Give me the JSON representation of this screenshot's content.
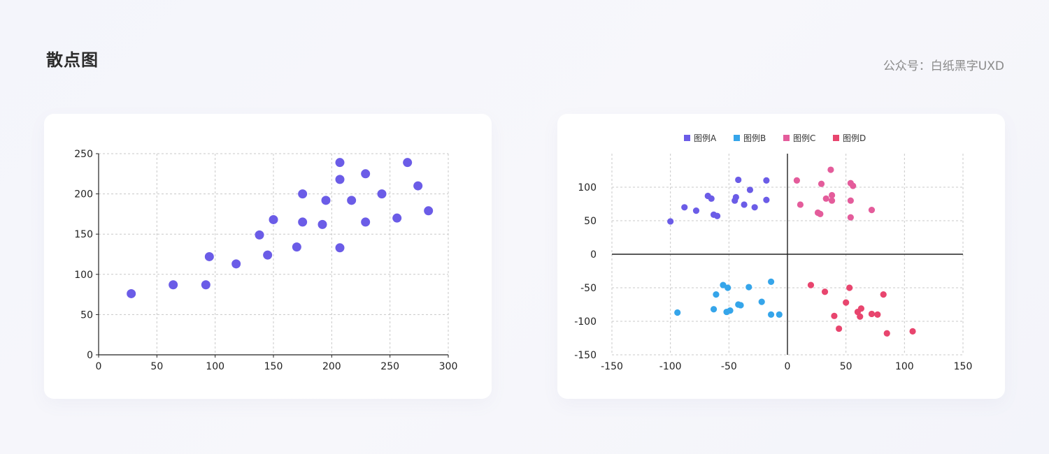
{
  "page": {
    "title": "散点图",
    "credit": "公众号：白纸黑字UXD"
  },
  "chart_data": [
    {
      "type": "scatter",
      "xlim": [
        0,
        300
      ],
      "ylim": [
        0,
        250
      ],
      "xticks": [
        0,
        50,
        100,
        150,
        200,
        250,
        300
      ],
      "yticks": [
        0,
        50,
        100,
        150,
        200,
        250
      ],
      "grid": true,
      "color": "#6b5ce7",
      "series": [
        {
          "points": [
            [
              28,
              76
            ],
            [
              64,
              87
            ],
            [
              92,
              87
            ],
            [
              95,
              122
            ],
            [
              118,
              113
            ],
            [
              138,
              149
            ],
            [
              145,
              124
            ],
            [
              150,
              168
            ],
            [
              170,
              134
            ],
            [
              175,
              200
            ],
            [
              175,
              165
            ],
            [
              192,
              162
            ],
            [
              195,
              192
            ],
            [
              207,
              239
            ],
            [
              207,
              218
            ],
            [
              207,
              133
            ],
            [
              217,
              192
            ],
            [
              229,
              225
            ],
            [
              229,
              165
            ],
            [
              243,
              200
            ],
            [
              256,
              170
            ],
            [
              265,
              239
            ],
            [
              274,
              210
            ],
            [
              283,
              179
            ]
          ]
        }
      ]
    },
    {
      "type": "scatter",
      "xlim": [
        -150,
        150
      ],
      "ylim": [
        -150,
        150
      ],
      "xticks": [
        -150,
        -100,
        -50,
        0,
        50,
        100,
        150
      ],
      "yticks": [
        -150,
        -100,
        -50,
        0,
        50,
        100
      ],
      "grid": true,
      "legend_position": "top-center",
      "series": [
        {
          "name": "图例A",
          "color": "#6b5ce7",
          "points": [
            [
              -100,
              49
            ],
            [
              -88,
              70
            ],
            [
              -78,
              65
            ],
            [
              -68,
              87
            ],
            [
              -65,
              83
            ],
            [
              -63,
              59
            ],
            [
              -60,
              57
            ],
            [
              -45,
              80
            ],
            [
              -44,
              85
            ],
            [
              -42,
              111
            ],
            [
              -37,
              74
            ],
            [
              -32,
              96
            ],
            [
              -28,
              70
            ],
            [
              -18,
              110
            ],
            [
              -18,
              81
            ]
          ]
        },
        {
          "name": "图例B",
          "color": "#35a5ea",
          "points": [
            [
              -94,
              -87
            ],
            [
              -63,
              -82
            ],
            [
              -61,
              -60
            ],
            [
              -55,
              -46
            ],
            [
              -52,
              -86
            ],
            [
              -51,
              -50
            ],
            [
              -49,
              -84
            ],
            [
              -42,
              -75
            ],
            [
              -40,
              -76
            ],
            [
              -33,
              -49
            ],
            [
              -22,
              -71
            ],
            [
              -14,
              -41
            ],
            [
              -14,
              -90
            ],
            [
              -7,
              -90
            ]
          ]
        },
        {
          "name": "图例C",
          "color": "#e45c9b",
          "points": [
            [
              8,
              110
            ],
            [
              11,
              74
            ],
            [
              26,
              62
            ],
            [
              28,
              60
            ],
            [
              29,
              105
            ],
            [
              33,
              83
            ],
            [
              38,
              88
            ],
            [
              38,
              80
            ],
            [
              54,
              106
            ],
            [
              54,
              80
            ],
            [
              54,
              55
            ],
            [
              56,
              102
            ],
            [
              72,
              66
            ],
            [
              37,
              126
            ]
          ]
        },
        {
          "name": "图例D",
          "color": "#e8456e",
          "points": [
            [
              20,
              -46
            ],
            [
              32,
              -56
            ],
            [
              40,
              -92
            ],
            [
              44,
              -111
            ],
            [
              50,
              -72
            ],
            [
              53,
              -50
            ],
            [
              60,
              -86
            ],
            [
              62,
              -93
            ],
            [
              63,
              -81
            ],
            [
              72,
              -89
            ],
            [
              77,
              -90
            ],
            [
              82,
              -60
            ],
            [
              85,
              -118
            ],
            [
              107,
              -115
            ]
          ]
        }
      ]
    }
  ]
}
